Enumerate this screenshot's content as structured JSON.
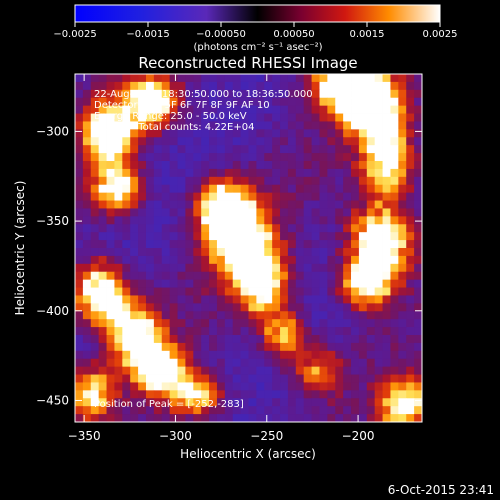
{
  "chart_data": {
    "type": "heatmap",
    "title": "Reconstructed RHESSI Image",
    "xlabel": "Heliocentric X (arcsec)",
    "ylabel": "Heliocentric Y (arcsec)",
    "xlim": [
      -355,
      -165
    ],
    "ylim": [
      -462,
      -268
    ],
    "xticks": [
      -350,
      -300,
      -250,
      -200
    ],
    "yticks": [
      -300,
      -350,
      -400,
      -450
    ],
    "colorbar": {
      "range": [
        -0.0025,
        0.0025
      ],
      "ticks": [
        "−0.0025",
        "−0.0015",
        "−0.00050",
        "0.00050",
        "0.0015",
        "0.0025"
      ],
      "tick_values": [
        -0.0025,
        -0.0015,
        -0.0005,
        0.0005,
        0.0015,
        0.0025
      ],
      "unit_label": "(photons cm⁻² s⁻¹ asec⁻²)"
    },
    "info_lines": [
      "22-Aug-2015 18:30:50.000 to 18:36:50.000",
      "Detectors: 3F 5F 6F 7F 8F 9F AF 10",
      "Energy Range: 25.0 - 50.0 keV",
      "Clean     Total counts: 4.22E+04"
    ],
    "peak_label": "Position of Peak = [-252,-283]",
    "peak": [
      -252,
      -283
    ],
    "colors": {
      "background": "#000000",
      "text": "#ffffff"
    }
  },
  "footer": {
    "timestamp": "6-Oct-2015 23:41"
  }
}
